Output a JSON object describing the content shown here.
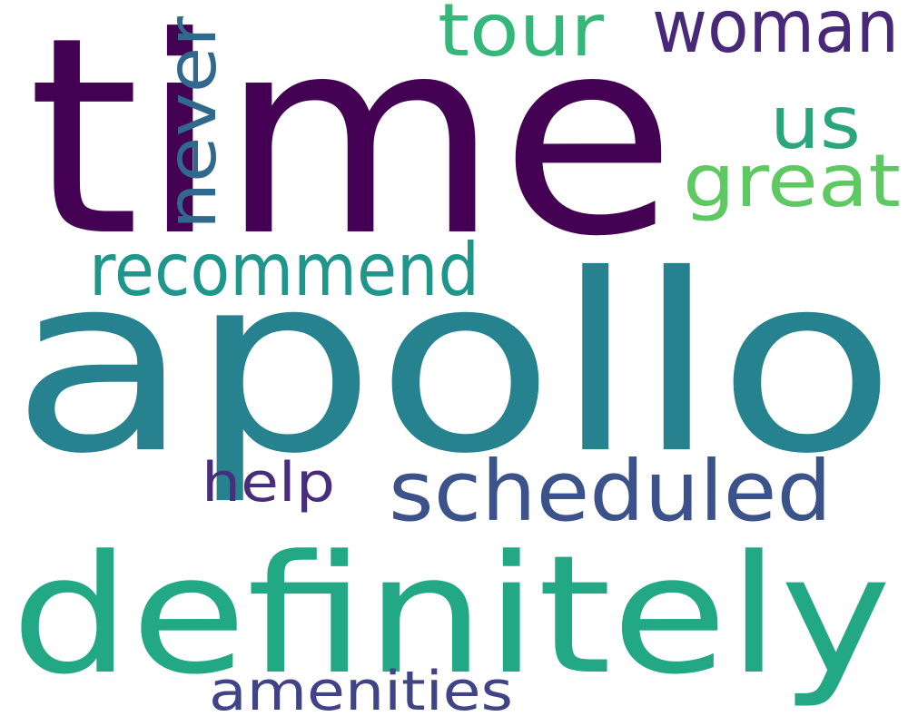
{
  "words": [
    {
      "id": "time",
      "text": "time",
      "color": "#440154"
    },
    {
      "id": "apollo",
      "text": "apollo",
      "color": "#26828e"
    },
    {
      "id": "definitely",
      "text": "definitely",
      "color": "#22a884"
    },
    {
      "id": "scheduled",
      "text": "scheduled",
      "color": "#3b528b"
    },
    {
      "id": "recommend",
      "text": "recommend",
      "color": "#1f968b"
    },
    {
      "id": "woman",
      "text": "woman",
      "color": "#482878"
    },
    {
      "id": "tour",
      "text": "tour",
      "color": "#35b779"
    },
    {
      "id": "us",
      "text": "us",
      "color": "#2ba57c"
    },
    {
      "id": "great",
      "text": "great",
      "color": "#5ec962"
    },
    {
      "id": "never",
      "text": "never",
      "color": "#31688e"
    },
    {
      "id": "help",
      "text": "help",
      "color": "#472d7b"
    },
    {
      "id": "amenities",
      "text": "amenities",
      "color": "#404386"
    }
  ]
}
